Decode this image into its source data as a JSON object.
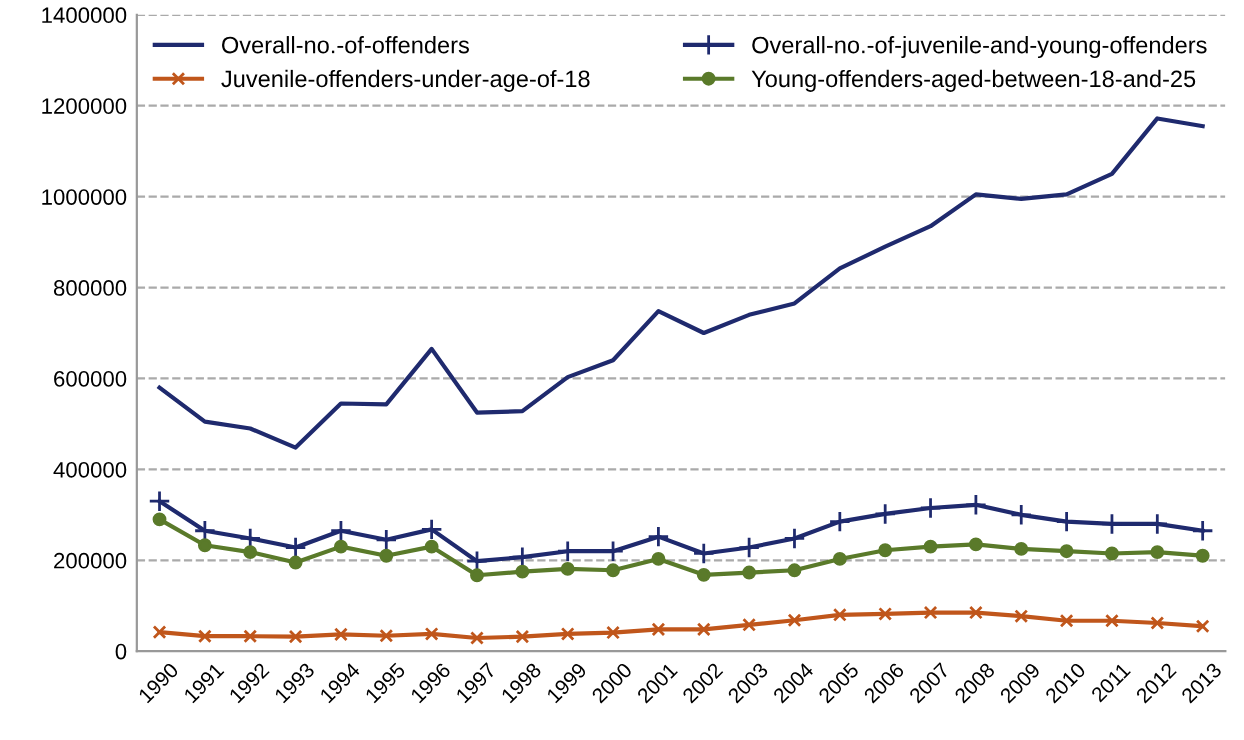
{
  "chart_data": {
    "type": "line",
    "categories": [
      "1990",
      "1991",
      "1992",
      "1993",
      "1994",
      "1995",
      "1996",
      "1997",
      "1998",
      "1999",
      "2000",
      "2001",
      "2002",
      "2003",
      "2004",
      "2005",
      "2006",
      "2007",
      "2008",
      "2009",
      "2010",
      "2011",
      "2012",
      "2013"
    ],
    "series": [
      {
        "name": "Overall-no.-of-offenders",
        "color": "#1f2a6e",
        "marker": "none",
        "values": [
          580000,
          505000,
          490000,
          448000,
          545000,
          543000,
          665000,
          525000,
          528000,
          603000,
          640000,
          748000,
          700000,
          740000,
          765000,
          842000,
          890000,
          935000,
          1005000,
          995000,
          1005000,
          1050000,
          1172000,
          1155000
        ]
      },
      {
        "name": "Overall-no.-of-juvenile-and-young-offenders",
        "color": "#1f2a6e",
        "marker": "cross",
        "values": [
          330000,
          265000,
          248000,
          228000,
          265000,
          245000,
          268000,
          198000,
          207000,
          220000,
          220000,
          252000,
          215000,
          228000,
          248000,
          285000,
          302000,
          315000,
          322000,
          300000,
          285000,
          280000,
          280000,
          265000
        ]
      },
      {
        "name": "Juvenile-offenders-under-age-of-18",
        "color": "#c0561b",
        "marker": "x",
        "values": [
          42000,
          33000,
          33000,
          32000,
          37000,
          34000,
          38000,
          29000,
          32000,
          38000,
          41000,
          48000,
          48000,
          58000,
          68000,
          80000,
          82000,
          85000,
          85000,
          77000,
          67000,
          67000,
          62000,
          55000
        ]
      },
      {
        "name": "Young-offenders-aged-between-18-and-25",
        "color": "#5a7a2a",
        "marker": "circle",
        "values": [
          290000,
          233000,
          218000,
          195000,
          230000,
          210000,
          230000,
          167000,
          175000,
          181000,
          178000,
          203000,
          168000,
          173000,
          178000,
          203000,
          222000,
          230000,
          235000,
          225000,
          220000,
          215000,
          218000,
          210000
        ]
      }
    ],
    "ylim": [
      0,
      1400000
    ],
    "yticks": [
      0,
      200000,
      400000,
      600000,
      800000,
      1000000,
      1200000,
      1400000
    ],
    "grid": "y",
    "legend": "top"
  }
}
